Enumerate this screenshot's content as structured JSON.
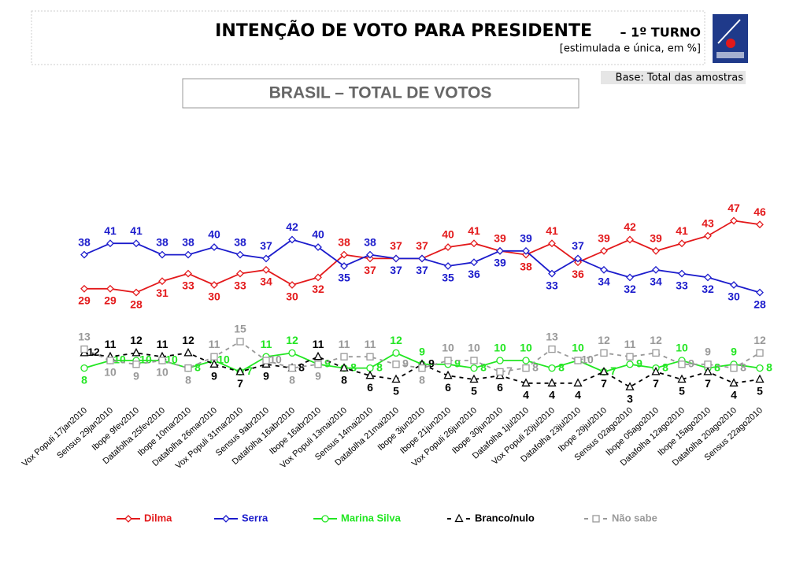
{
  "chart_data": {
    "type": "line",
    "title": "INTENÇÃO DE VOTO PARA PRESIDENTE",
    "title_suffix": "– 1º TURNO",
    "subtitle": "[estimulada e única, em %]",
    "base_note": "Base: Total das amostras",
    "panel_title": "BRASIL – TOTAL DE VOTOS",
    "categories": [
      "Vox Populi 17jan2010",
      "Sensus 29jan2010",
      "Ibope 9fev2010",
      "Datafolha 25fev2010",
      "Ibope 10mar2010",
      "Datafolha 26mar2010",
      "Vox Populi 31mar2010",
      "Sensus 9abr2010",
      "Datafolha 16abr2010",
      "Ibope 16abr2010",
      "Vox Populi 13mai2010",
      "Sensus 14mai2010",
      "Datafolha 21mai2010",
      "Ibope 3jun2010",
      "Ibope 21jun2010",
      "Vox Populi 26jun2010",
      "Ibope 30jun2010",
      "Datafolha 1jul2010",
      "Vox Populi 20jul2010",
      "Datafolha 23jul2010",
      "Ibope 29jul2010",
      "Sensus 02ago2010",
      "Ibope 05ago2010",
      "Datafolha 12ago2010",
      "Ibope 15ago2010",
      "Datafolha 20ago2010",
      "Sensus 22ago2010"
    ],
    "series": [
      {
        "name": "Dilma",
        "color": "#e3191b",
        "marker": "diamond",
        "dashed": false,
        "group": "top",
        "values": [
          29,
          29,
          28,
          31,
          33,
          30,
          33,
          34,
          30,
          32,
          38,
          37,
          37,
          37,
          40,
          41,
          39,
          38,
          41,
          36,
          39,
          42,
          39,
          41,
          43,
          47,
          46
        ]
      },
      {
        "name": "Serra",
        "color": "#1c1ccc",
        "marker": "diamond",
        "dashed": false,
        "group": "top",
        "values": [
          38,
          41,
          41,
          38,
          38,
          40,
          38,
          37,
          42,
          40,
          35,
          38,
          37,
          37,
          35,
          36,
          39,
          39,
          33,
          37,
          34,
          32,
          34,
          33,
          32,
          30,
          28
        ]
      },
      {
        "name": "Marina Silva",
        "color": "#22e622",
        "marker": "circle",
        "dashed": false,
        "group": "low",
        "values": [
          8,
          10,
          10,
          10,
          8,
          10,
          7,
          11,
          12,
          9,
          8,
          8,
          12,
          9,
          9,
          8,
          10,
          10,
          8,
          10,
          7,
          9,
          8,
          10,
          8,
          9,
          8
        ]
      },
      {
        "name": "Branco/nulo",
        "color": "#000000",
        "marker": "triangle",
        "dashed": true,
        "group": "low",
        "values": [
          12,
          11,
          12,
          11,
          12,
          9,
          7,
          9,
          8,
          11,
          8,
          6,
          5,
          9,
          6,
          5,
          6,
          4,
          4,
          4,
          7,
          3,
          7,
          5,
          7,
          4,
          5
        ]
      },
      {
        "name": "Não sabe",
        "color": "#999999",
        "marker": "square",
        "dashed": true,
        "group": "low",
        "values": [
          13,
          10,
          9,
          10,
          8,
          11,
          15,
          10,
          8,
          9,
          11,
          11,
          9,
          8,
          10,
          10,
          7,
          8,
          13,
          10,
          12,
          11,
          12,
          9,
          9,
          8,
          12
        ]
      }
    ]
  }
}
